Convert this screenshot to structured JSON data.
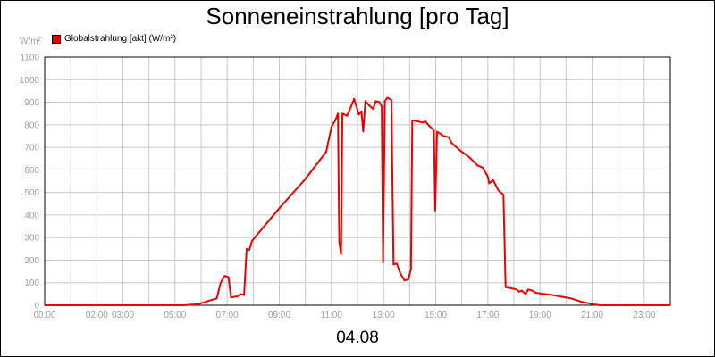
{
  "chart_data": {
    "type": "line",
    "title": "Sonneneinstrahlung [pro Tag]",
    "ylabel": "W/m²",
    "xlabel": "04.08",
    "ylim": [
      0,
      1100
    ],
    "xlim_hours": [
      0,
      24
    ],
    "grid": true,
    "legend_position": "top-left",
    "y_ticks": [
      0,
      100,
      200,
      300,
      400,
      500,
      600,
      700,
      800,
      900,
      1000,
      1100
    ],
    "x_ticks": [
      {
        "hour": 0,
        "label": "00:00"
      },
      {
        "hour": 2,
        "label": "02:00"
      },
      {
        "hour": 3,
        "label": "03:00"
      },
      {
        "hour": 5,
        "label": "05:00"
      },
      {
        "hour": 7,
        "label": "07:00"
      },
      {
        "hour": 9,
        "label": "09:00"
      },
      {
        "hour": 11,
        "label": "11:00"
      },
      {
        "hour": 13,
        "label": "13:00"
      },
      {
        "hour": 15,
        "label": "15:00"
      },
      {
        "hour": 17,
        "label": "17:00"
      },
      {
        "hour": 19,
        "label": "19:00"
      },
      {
        "hour": 21,
        "label": "21:00"
      },
      {
        "hour": 23,
        "label": "23:00"
      }
    ],
    "series": [
      {
        "name": "Globalstrahlung [akt] (W/m²)",
        "color": "#ee0000",
        "points": [
          [
            0,
            0
          ],
          [
            5.3,
            0
          ],
          [
            5.9,
            5
          ],
          [
            6.3,
            20
          ],
          [
            6.6,
            30
          ],
          [
            6.75,
            100
          ],
          [
            6.9,
            130
          ],
          [
            7.05,
            125
          ],
          [
            7.15,
            35
          ],
          [
            7.4,
            40
          ],
          [
            7.5,
            50
          ],
          [
            7.65,
            45
          ],
          [
            7.75,
            250
          ],
          [
            7.85,
            245
          ],
          [
            7.95,
            285
          ],
          [
            8.2,
            320
          ],
          [
            9.0,
            430
          ],
          [
            10.0,
            560
          ],
          [
            10.8,
            680
          ],
          [
            11.0,
            790
          ],
          [
            11.15,
            820
          ],
          [
            11.25,
            850
          ],
          [
            11.3,
            280
          ],
          [
            11.37,
            225
          ],
          [
            11.42,
            850
          ],
          [
            11.6,
            840
          ],
          [
            11.75,
            880
          ],
          [
            11.87,
            915
          ],
          [
            12.05,
            845
          ],
          [
            12.15,
            860
          ],
          [
            12.22,
            770
          ],
          [
            12.3,
            905
          ],
          [
            12.45,
            885
          ],
          [
            12.6,
            870
          ],
          [
            12.7,
            905
          ],
          [
            12.85,
            900
          ],
          [
            12.93,
            880
          ],
          [
            12.98,
            190
          ],
          [
            13.05,
            905
          ],
          [
            13.15,
            920
          ],
          [
            13.3,
            910
          ],
          [
            13.38,
            180
          ],
          [
            13.5,
            185
          ],
          [
            13.65,
            140
          ],
          [
            13.8,
            110
          ],
          [
            13.95,
            115
          ],
          [
            14.05,
            160
          ],
          [
            14.1,
            820
          ],
          [
            14.3,
            815
          ],
          [
            14.5,
            810
          ],
          [
            14.6,
            815
          ],
          [
            14.75,
            795
          ],
          [
            14.85,
            785
          ],
          [
            14.93,
            775
          ],
          [
            14.98,
            420
          ],
          [
            15.05,
            770
          ],
          [
            15.3,
            750
          ],
          [
            15.5,
            745
          ],
          [
            15.6,
            720
          ],
          [
            15.8,
            700
          ],
          [
            16.0,
            680
          ],
          [
            16.3,
            655
          ],
          [
            16.6,
            620
          ],
          [
            16.8,
            610
          ],
          [
            17.0,
            570
          ],
          [
            17.05,
            540
          ],
          [
            17.2,
            555
          ],
          [
            17.4,
            510
          ],
          [
            17.6,
            490
          ],
          [
            17.68,
            80
          ],
          [
            17.9,
            75
          ],
          [
            18.1,
            70
          ],
          [
            18.2,
            60
          ],
          [
            18.3,
            65
          ],
          [
            18.45,
            50
          ],
          [
            18.55,
            70
          ],
          [
            18.7,
            65
          ],
          [
            18.85,
            55
          ],
          [
            19.5,
            45
          ],
          [
            20.2,
            30
          ],
          [
            20.6,
            15
          ],
          [
            21.0,
            5
          ],
          [
            21.3,
            0
          ],
          [
            24,
            0
          ]
        ]
      }
    ]
  }
}
